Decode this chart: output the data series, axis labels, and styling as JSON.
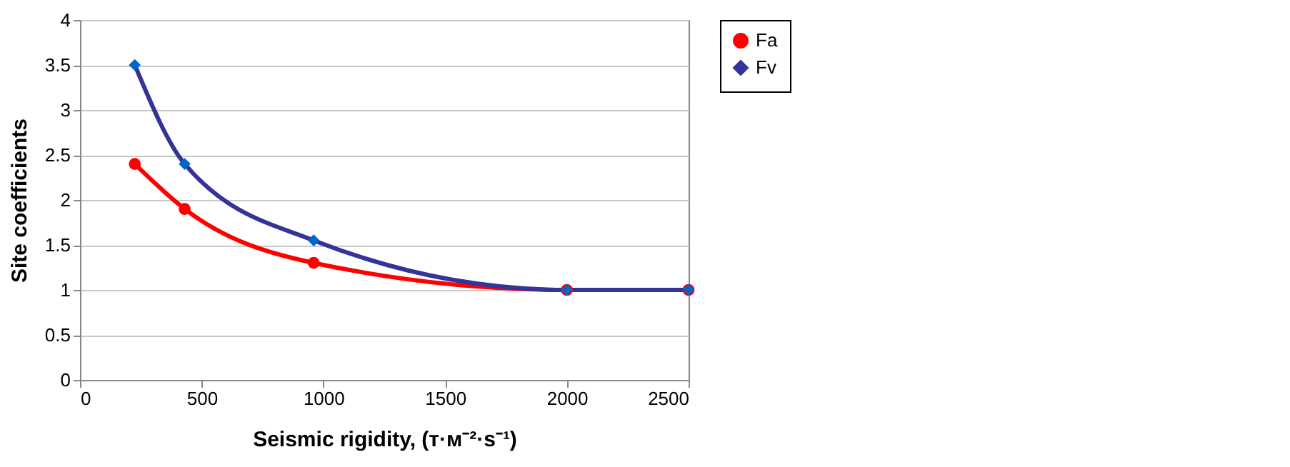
{
  "chart_data": {
    "type": "line",
    "xlabel": "Seismic rigidity, (т·м⁻²·s⁻¹)",
    "ylabel": "Site coefficients",
    "x": [
      225,
      430,
      960,
      2000,
      2500
    ],
    "series": [
      {
        "name": "Fa",
        "color": "#ff0000",
        "marker": "circle",
        "values": [
          2.4,
          1.9,
          1.3,
          1.0,
          1.0
        ]
      },
      {
        "name": "Fv",
        "color": "#333399",
        "marker": "diamond",
        "values": [
          3.5,
          2.4,
          1.55,
          1.0,
          1.0
        ]
      }
    ],
    "xlim": [
      0,
      2500
    ],
    "xticks": [
      0,
      500,
      1000,
      1500,
      2000,
      2500
    ],
    "ylim": [
      0,
      4
    ],
    "yticks": [
      0,
      0.5,
      1,
      1.5,
      2,
      2.5,
      3,
      3.5,
      4
    ],
    "grid": "y",
    "legend": "right",
    "line_style": "solid"
  }
}
